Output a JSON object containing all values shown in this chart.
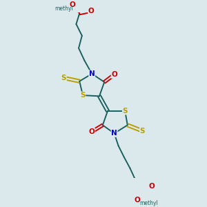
{
  "bg_color": "#dce9ec",
  "bond_color": "#1a6060",
  "S_color": "#b8a000",
  "N_color": "#0000cc",
  "O_color": "#cc0000",
  "lw": 1.4,
  "fs": 7.5,
  "xlim": [
    0,
    10
  ],
  "ylim": [
    0,
    10
  ],
  "figsize": [
    3.0,
    3.0
  ],
  "dpi": 100
}
